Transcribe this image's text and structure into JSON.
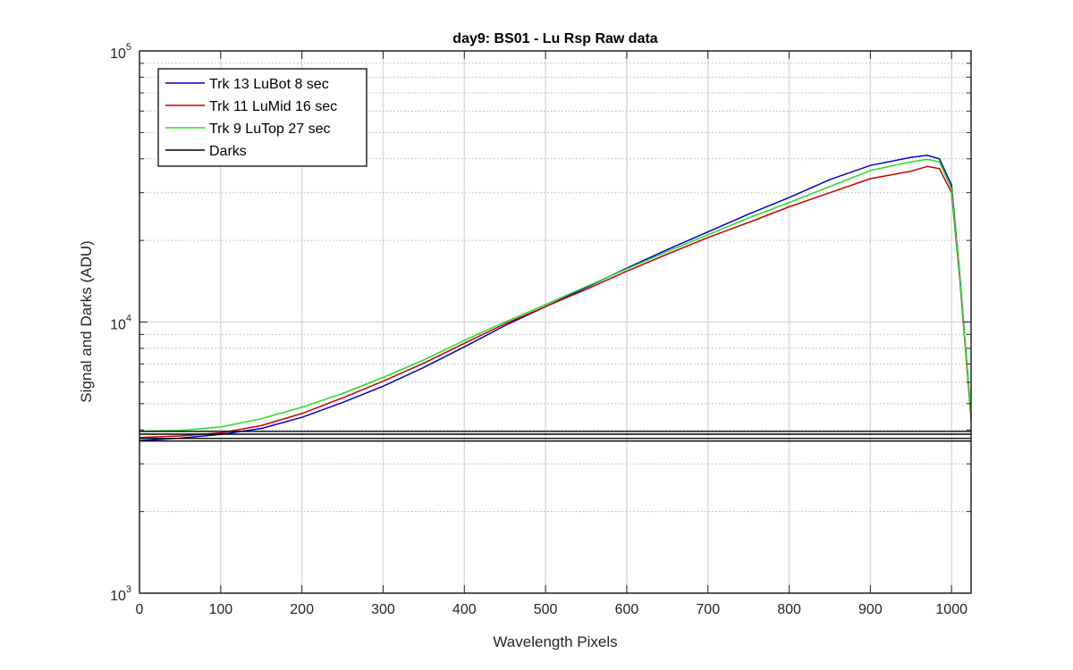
{
  "chart_data": {
    "type": "line",
    "title": "day9: BS01  - Lu Rsp Raw data",
    "xlabel": "Wavelength Pixels",
    "ylabel": "Signal and Darks (ADU)",
    "xlim": [
      0,
      1024
    ],
    "ylim": [
      1000,
      100000
    ],
    "yscale": "log",
    "grid": true,
    "legend_position": "top-left",
    "x_ticks": [
      0,
      100,
      200,
      300,
      400,
      500,
      600,
      700,
      800,
      900,
      1000
    ],
    "y_ticks": [
      {
        "value": 1000,
        "base": "10",
        "exp": "3"
      },
      {
        "value": 10000,
        "base": "10",
        "exp": "4"
      },
      {
        "value": 100000,
        "base": "10",
        "exp": "5"
      }
    ],
    "series": [
      {
        "name": "Trk 13 LuBot 8 sec",
        "color": "#0000cc",
        "x": [
          0,
          50,
          100,
          150,
          200,
          250,
          300,
          350,
          400,
          450,
          500,
          550,
          600,
          650,
          700,
          750,
          800,
          850,
          900,
          950,
          970,
          985,
          1000,
          1010,
          1024
        ],
        "y": [
          3650,
          3730,
          3850,
          4050,
          4450,
          5050,
          5800,
          6800,
          8100,
          9700,
          11400,
          13400,
          15800,
          18500,
          21500,
          25000,
          28800,
          33500,
          37800,
          40500,
          41200,
          40000,
          32000,
          15000,
          4500
        ]
      },
      {
        "name": "Trk 11 LuMid 16 sec",
        "color": "#cc0000",
        "x": [
          0,
          50,
          100,
          150,
          200,
          250,
          300,
          350,
          400,
          450,
          500,
          550,
          600,
          650,
          700,
          750,
          800,
          850,
          900,
          950,
          970,
          985,
          1000,
          1010,
          1024
        ],
        "y": [
          3750,
          3800,
          3900,
          4150,
          4600,
          5250,
          6050,
          7050,
          8350,
          9850,
          11400,
          13200,
          15400,
          17800,
          20500,
          23300,
          26600,
          30000,
          33800,
          36000,
          37500,
          36800,
          30000,
          14500,
          4400
        ]
      },
      {
        "name": "Trk 9 LuTop 27 sec",
        "color": "#22dd22",
        "x": [
          0,
          50,
          100,
          150,
          200,
          250,
          300,
          350,
          400,
          450,
          500,
          550,
          600,
          650,
          700,
          750,
          800,
          850,
          900,
          950,
          970,
          985,
          1000,
          1010,
          1024
        ],
        "y": [
          3950,
          3980,
          4100,
          4400,
          4850,
          5450,
          6250,
          7250,
          8550,
          10000,
          11600,
          13500,
          15700,
          18200,
          21000,
          24200,
          27600,
          31600,
          36200,
          39000,
          39800,
          39000,
          31000,
          14800,
          4500
        ]
      },
      {
        "name": "Darks",
        "color": "#000000",
        "lines": [
          {
            "x": [
              0,
              1024
            ],
            "y": [
              3950,
              3950
            ]
          },
          {
            "x": [
              0,
              1024
            ],
            "y": [
              3860,
              3860
            ]
          },
          {
            "x": [
              0,
              1024
            ],
            "y": [
              3720,
              3720
            ]
          },
          {
            "x": [
              0,
              1024
            ],
            "y": [
              3640,
              3640
            ]
          }
        ]
      }
    ]
  }
}
